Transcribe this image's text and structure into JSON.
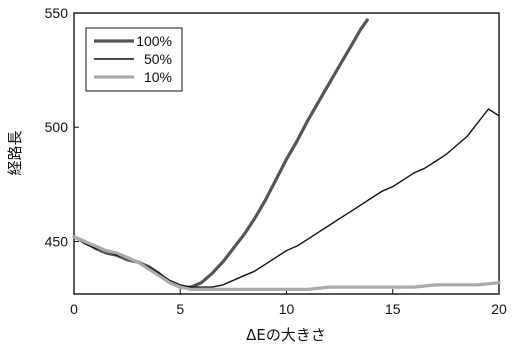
{
  "chart_data": {
    "type": "line",
    "xlabel": "ΔEの大きさ",
    "ylabel": "経路長",
    "xlim": [
      0,
      20
    ],
    "ylim": [
      427,
      550
    ],
    "x_ticks": [
      0,
      5,
      10,
      15,
      20
    ],
    "y_ticks": [
      450,
      500,
      550
    ],
    "grid": false,
    "legend_position": "top-left",
    "series": [
      {
        "name": "100%",
        "color": "#555555",
        "style": "thick",
        "x": [
          0,
          0.5,
          1,
          1.5,
          2,
          2.5,
          3,
          3.5,
          4,
          4.5,
          5,
          5.5,
          6,
          6.5,
          7,
          7.5,
          8,
          8.5,
          9,
          9.5,
          10,
          10.5,
          11,
          11.5,
          12,
          12.5,
          13,
          13.5,
          13.8
        ],
        "y": [
          452,
          450,
          447,
          445,
          444,
          442,
          441,
          439,
          436,
          432,
          430,
          430,
          432,
          436,
          441,
          447,
          453,
          460,
          468,
          477,
          486,
          494,
          503,
          511,
          519,
          527,
          535,
          543,
          547
        ]
      },
      {
        "name": "50%",
        "color": "#111111",
        "style": "thin",
        "x": [
          0,
          0.5,
          1,
          1.5,
          2,
          2.5,
          3,
          3.5,
          4,
          4.5,
          5,
          5.5,
          6,
          6.5,
          7,
          7.5,
          8,
          8.5,
          9,
          9.5,
          10,
          10.5,
          11,
          11.5,
          12,
          12.5,
          13,
          13.5,
          14,
          14.5,
          15,
          15.5,
          16,
          16.5,
          17,
          17.5,
          18,
          18.5,
          19,
          19.5,
          20
        ],
        "y": [
          452,
          449,
          447,
          446,
          444,
          443,
          441,
          439,
          436,
          433,
          431,
          430,
          430,
          430,
          431,
          433,
          435,
          437,
          440,
          443,
          446,
          448,
          451,
          454,
          457,
          460,
          463,
          466,
          469,
          472,
          474,
          477,
          480,
          482,
          485,
          488,
          492,
          496,
          502,
          508,
          505
        ]
      },
      {
        "name": "10%",
        "color": "#aaaaaa",
        "style": "thick",
        "x": [
          0,
          0.5,
          1,
          1.5,
          2,
          2.5,
          3,
          3.5,
          4,
          4.5,
          5,
          5.5,
          6,
          7,
          8,
          9,
          10,
          11,
          12,
          13,
          14,
          15,
          16,
          17,
          18,
          19,
          20
        ],
        "y": [
          452,
          450,
          448,
          446,
          445,
          443,
          441,
          438,
          435,
          432,
          430,
          429,
          429,
          429,
          429,
          429,
          429,
          429,
          430,
          430,
          430,
          430,
          430,
          431,
          431,
          431,
          432
        ]
      }
    ]
  }
}
